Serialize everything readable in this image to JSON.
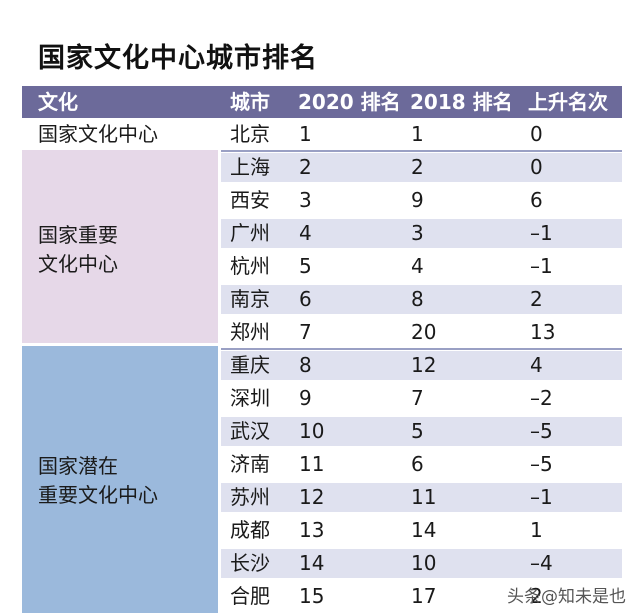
{
  "title": "国家文化中心城市排名",
  "chart_data": {
    "type": "table",
    "columns": [
      "文化",
      "城市",
      "2020 排名",
      "2018 排名",
      "上升名次"
    ],
    "groups": [
      {
        "label_lines": [
          "国家文化中心"
        ],
        "start": 0,
        "count": 1
      },
      {
        "label_lines": [
          "国家重要",
          "文化中心"
        ],
        "start": 1,
        "count": 6
      },
      {
        "label_lines": [
          "国家潜在",
          "重要文化中心"
        ],
        "start": 7,
        "count": 8
      }
    ],
    "rows": [
      {
        "city": "北京",
        "rank2020": "1",
        "rank2018": "1",
        "change": "0"
      },
      {
        "city": "上海",
        "rank2020": "2",
        "rank2018": "2",
        "change": "0"
      },
      {
        "city": "西安",
        "rank2020": "3",
        "rank2018": "9",
        "change": "6"
      },
      {
        "city": "广州",
        "rank2020": "4",
        "rank2018": "3",
        "change": "–1"
      },
      {
        "city": "杭州",
        "rank2020": "5",
        "rank2018": "4",
        "change": "–1"
      },
      {
        "city": "南京",
        "rank2020": "6",
        "rank2018": "8",
        "change": "2"
      },
      {
        "city": "郑州",
        "rank2020": "7",
        "rank2018": "20",
        "change": "13"
      },
      {
        "city": "重庆",
        "rank2020": "8",
        "rank2018": "12",
        "change": "4"
      },
      {
        "city": "深圳",
        "rank2020": "9",
        "rank2018": "7",
        "change": "–2"
      },
      {
        "city": "武汉",
        "rank2020": "10",
        "rank2018": "5",
        "change": "–5"
      },
      {
        "city": "济南",
        "rank2020": "11",
        "rank2018": "6",
        "change": "–5"
      },
      {
        "city": "苏州",
        "rank2020": "12",
        "rank2018": "11",
        "change": "–1"
      },
      {
        "city": "成都",
        "rank2020": "13",
        "rank2018": "14",
        "change": "1"
      },
      {
        "city": "长沙",
        "rank2020": "14",
        "rank2018": "10",
        "change": "–4"
      },
      {
        "city": "合肥",
        "rank2020": "15",
        "rank2018": "17",
        "change": "2"
      }
    ]
  },
  "colors": {
    "header": "#6c6a9a",
    "group_pink": "#e6d8e8",
    "group_blue": "#9bb9dc",
    "row_stripe": "#dfe1ef"
  },
  "watermark": "头条@知未是也"
}
